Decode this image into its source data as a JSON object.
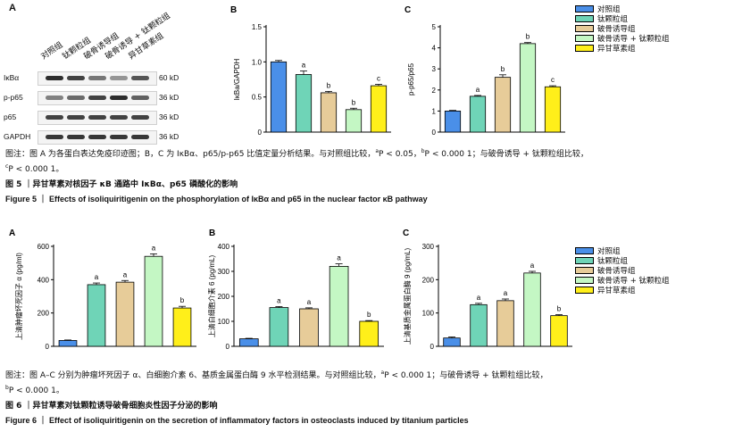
{
  "colors": {
    "groups": [
      "#4a8fe8",
      "#6fd4b7",
      "#e7cc99",
      "#c4f7c4",
      "#ffef1a"
    ],
    "axis": "#000000"
  },
  "legend_items": [
    "对照组",
    "钛颗粒组",
    "破骨诱导组",
    "破骨诱导 + 钛颗粒组",
    "异甘草素组"
  ],
  "fig5": {
    "panel_a": {
      "letter": "A",
      "groups": [
        "对照组",
        "钛颗粒组",
        "破骨诱导组",
        "破骨诱导 + 钛颗粒组",
        "异甘草素组"
      ],
      "blots": [
        {
          "name": "IκBα",
          "size": "60 kD",
          "intensities": [
            0.95,
            0.85,
            0.6,
            0.45,
            0.75
          ]
        },
        {
          "name": "p-p65",
          "size": "36 kD",
          "intensities": [
            0.55,
            0.65,
            0.85,
            0.95,
            0.7
          ]
        },
        {
          "name": "p65",
          "size": "36 kD",
          "intensities": [
            0.85,
            0.85,
            0.85,
            0.85,
            0.85
          ]
        },
        {
          "name": "GAPDH",
          "size": "36 kD",
          "intensities": [
            0.9,
            0.9,
            0.9,
            0.9,
            0.9
          ]
        }
      ]
    },
    "caption": {
      "line1": "图注：图 A 为各蛋白表达免疫印迹图；B，C 为 IκBα、p65/p-p65 比值定量分析结果。与对照组比较，",
      "m1": "a",
      "t1": "P < 0.05，",
      "m2": "b",
      "t2": "P < 0.000 1；与破骨诱导 + 钛颗粒组比较，",
      "m3": "c",
      "t3": "P < 0.000 1。"
    },
    "title_cn": "图 5 ｜异甘草素对核因子 κB 通路中 IκBα、p65 磷酸化的影响",
    "title_en": "Figure 5 ｜ Effects of isoliquiritigenin on the phosphorylation of IκBα and p65 in the nuclear factor κB pathway"
  },
  "fig6": {
    "caption": {
      "line1": "图注：图 A–C 分别为肿瘤坏死因子 α、白细胞介素 6、基质金属蛋白酶 9 水平检测结果。与对照组比较，",
      "m1": "a",
      "t1": "P < 0.000 1；与破骨诱导 + 钛颗粒组比较，",
      "m2": "b",
      "t2": "P < 0.000 1。"
    },
    "title_cn": "图 6 ｜异甘草素对钛颗粒诱导破骨细胞炎性因子分泌的影响",
    "title_en": "Figure 6 ｜ Effect of isoliquiritigenin on the secretion of inflammatory factors in osteoclasts induced by titanium particles"
  },
  "chart_data": [
    {
      "id": "fig5B",
      "letter": "B",
      "type": "bar",
      "categories": [
        "对照组",
        "钛颗粒组",
        "破骨诱导组",
        "破骨诱导 + 钛颗粒组",
        "异甘草素组"
      ],
      "values": [
        1.0,
        0.82,
        0.56,
        0.32,
        0.66
      ],
      "errors": [
        0.02,
        0.05,
        0.02,
        0.02,
        0.02
      ],
      "labels": [
        "",
        "a",
        "b",
        "b",
        "c"
      ],
      "ylabel": "IκBa/GAPDH",
      "ylim": [
        0,
        1.5
      ],
      "yticks": [
        0,
        0.5,
        1.0,
        1.5
      ],
      "ytick_labels": [
        "0",
        "0.5",
        "1.0",
        "1.5"
      ]
    },
    {
      "id": "fig5C",
      "letter": "C",
      "type": "bar",
      "categories": [
        "对照组",
        "钛颗粒组",
        "破骨诱导组",
        "破骨诱导 + 钛颗粒组",
        "异甘草素组"
      ],
      "values": [
        1.0,
        1.7,
        2.6,
        4.2,
        2.15
      ],
      "errors": [
        0.03,
        0.04,
        0.12,
        0.05,
        0.05
      ],
      "labels": [
        "",
        "a",
        "b",
        "b",
        "c"
      ],
      "ylabel": "p-p65/p65",
      "ylim": [
        0,
        5
      ],
      "yticks": [
        0,
        1,
        2,
        3,
        4,
        5
      ],
      "ytick_labels": [
        "0",
        "1",
        "2",
        "3",
        "4",
        "5"
      ]
    },
    {
      "id": "fig6A",
      "letter": "A",
      "type": "bar",
      "categories": [
        "对照组",
        "钛颗粒组",
        "破骨诱导组",
        "破骨诱导 + 钛颗粒组",
        "异甘草素组"
      ],
      "values": [
        35,
        370,
        385,
        540,
        230
      ],
      "errors": [
        3,
        10,
        10,
        15,
        10
      ],
      "labels": [
        "",
        "a",
        "a",
        "a",
        "b"
      ],
      "ylabel": "上清肿瘤坏死因子 α (pg/ml)",
      "ylim": [
        0,
        600
      ],
      "yticks": [
        0,
        200,
        400,
        600
      ],
      "ytick_labels": [
        "0",
        "200",
        "400",
        "600"
      ]
    },
    {
      "id": "fig6B",
      "letter": "B",
      "type": "bar",
      "categories": [
        "对照组",
        "钛颗粒组",
        "破骨诱导组",
        "破骨诱导 + 钛颗粒组",
        "异甘草素组"
      ],
      "values": [
        30,
        155,
        150,
        320,
        100
      ],
      "errors": [
        2,
        4,
        4,
        10,
        3
      ],
      "labels": [
        "",
        "a",
        "a",
        "a",
        "b"
      ],
      "ylabel": "上清白细胞介素 6 (pg/mL)",
      "ylim": [
        0,
        400
      ],
      "yticks": [
        0,
        100,
        200,
        300,
        400
      ],
      "ytick_labels": [
        "0",
        "100",
        "200",
        "300",
        "400"
      ]
    },
    {
      "id": "fig6C",
      "letter": "C",
      "type": "bar",
      "categories": [
        "对照组",
        "钛颗粒组",
        "破骨诱导组",
        "破骨诱导 + 钛颗粒组",
        "异甘草素组"
      ],
      "values": [
        25,
        125,
        137,
        220,
        92
      ],
      "errors": [
        3,
        4,
        5,
        5,
        3
      ],
      "labels": [
        "",
        "a",
        "a",
        "a",
        "b"
      ],
      "ylabel": "上清基质金属蛋白酶 9 (pg/mL)",
      "ylim": [
        0,
        300
      ],
      "yticks": [
        0,
        100,
        200,
        300
      ],
      "ytick_labels": [
        "0",
        "100",
        "200",
        "300"
      ]
    }
  ]
}
